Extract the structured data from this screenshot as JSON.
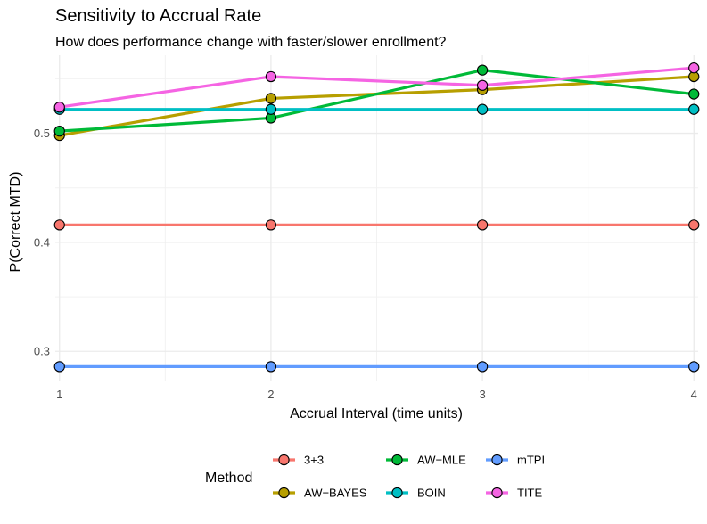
{
  "chart_data": {
    "type": "line",
    "title": "Sensitivity to Accrual Rate",
    "subtitle": "How does performance change with faster/slower enrollment?",
    "xlabel": "Accrual Interval (time units)",
    "ylabel": "P(Correct MTD)",
    "x": [
      1,
      2,
      3,
      4
    ],
    "x_ticks": [
      "1",
      "2",
      "3",
      "4"
    ],
    "y_ticks": [
      {
        "value": 0.3,
        "label": "0.3"
      },
      {
        "value": 0.4,
        "label": "0.4"
      },
      {
        "value": 0.5,
        "label": "0.5"
      }
    ],
    "xlim": [
      0.98,
      4.02
    ],
    "ylim": [
      0.2724,
      0.5716
    ],
    "grid": true,
    "legend_title": "Method",
    "legend_position": "bottom",
    "series": [
      {
        "name": "3+3",
        "color": "#F8766D",
        "values": [
          0.416,
          0.416,
          0.416,
          0.416
        ]
      },
      {
        "name": "AW−BAYES",
        "color": "#B79F00",
        "values": [
          0.498,
          0.532,
          0.54,
          0.552
        ]
      },
      {
        "name": "AW−MLE",
        "color": "#00BA38",
        "values": [
          0.502,
          0.514,
          0.558,
          0.536
        ]
      },
      {
        "name": "BOIN",
        "color": "#00BFC4",
        "values": [
          0.522,
          0.522,
          0.522,
          0.522
        ]
      },
      {
        "name": "mTPI",
        "color": "#619CFF",
        "values": [
          0.286,
          0.286,
          0.286,
          0.286
        ]
      },
      {
        "name": "TITE",
        "color": "#F564E3",
        "values": [
          0.524,
          0.552,
          0.544,
          0.56
        ]
      }
    ]
  }
}
